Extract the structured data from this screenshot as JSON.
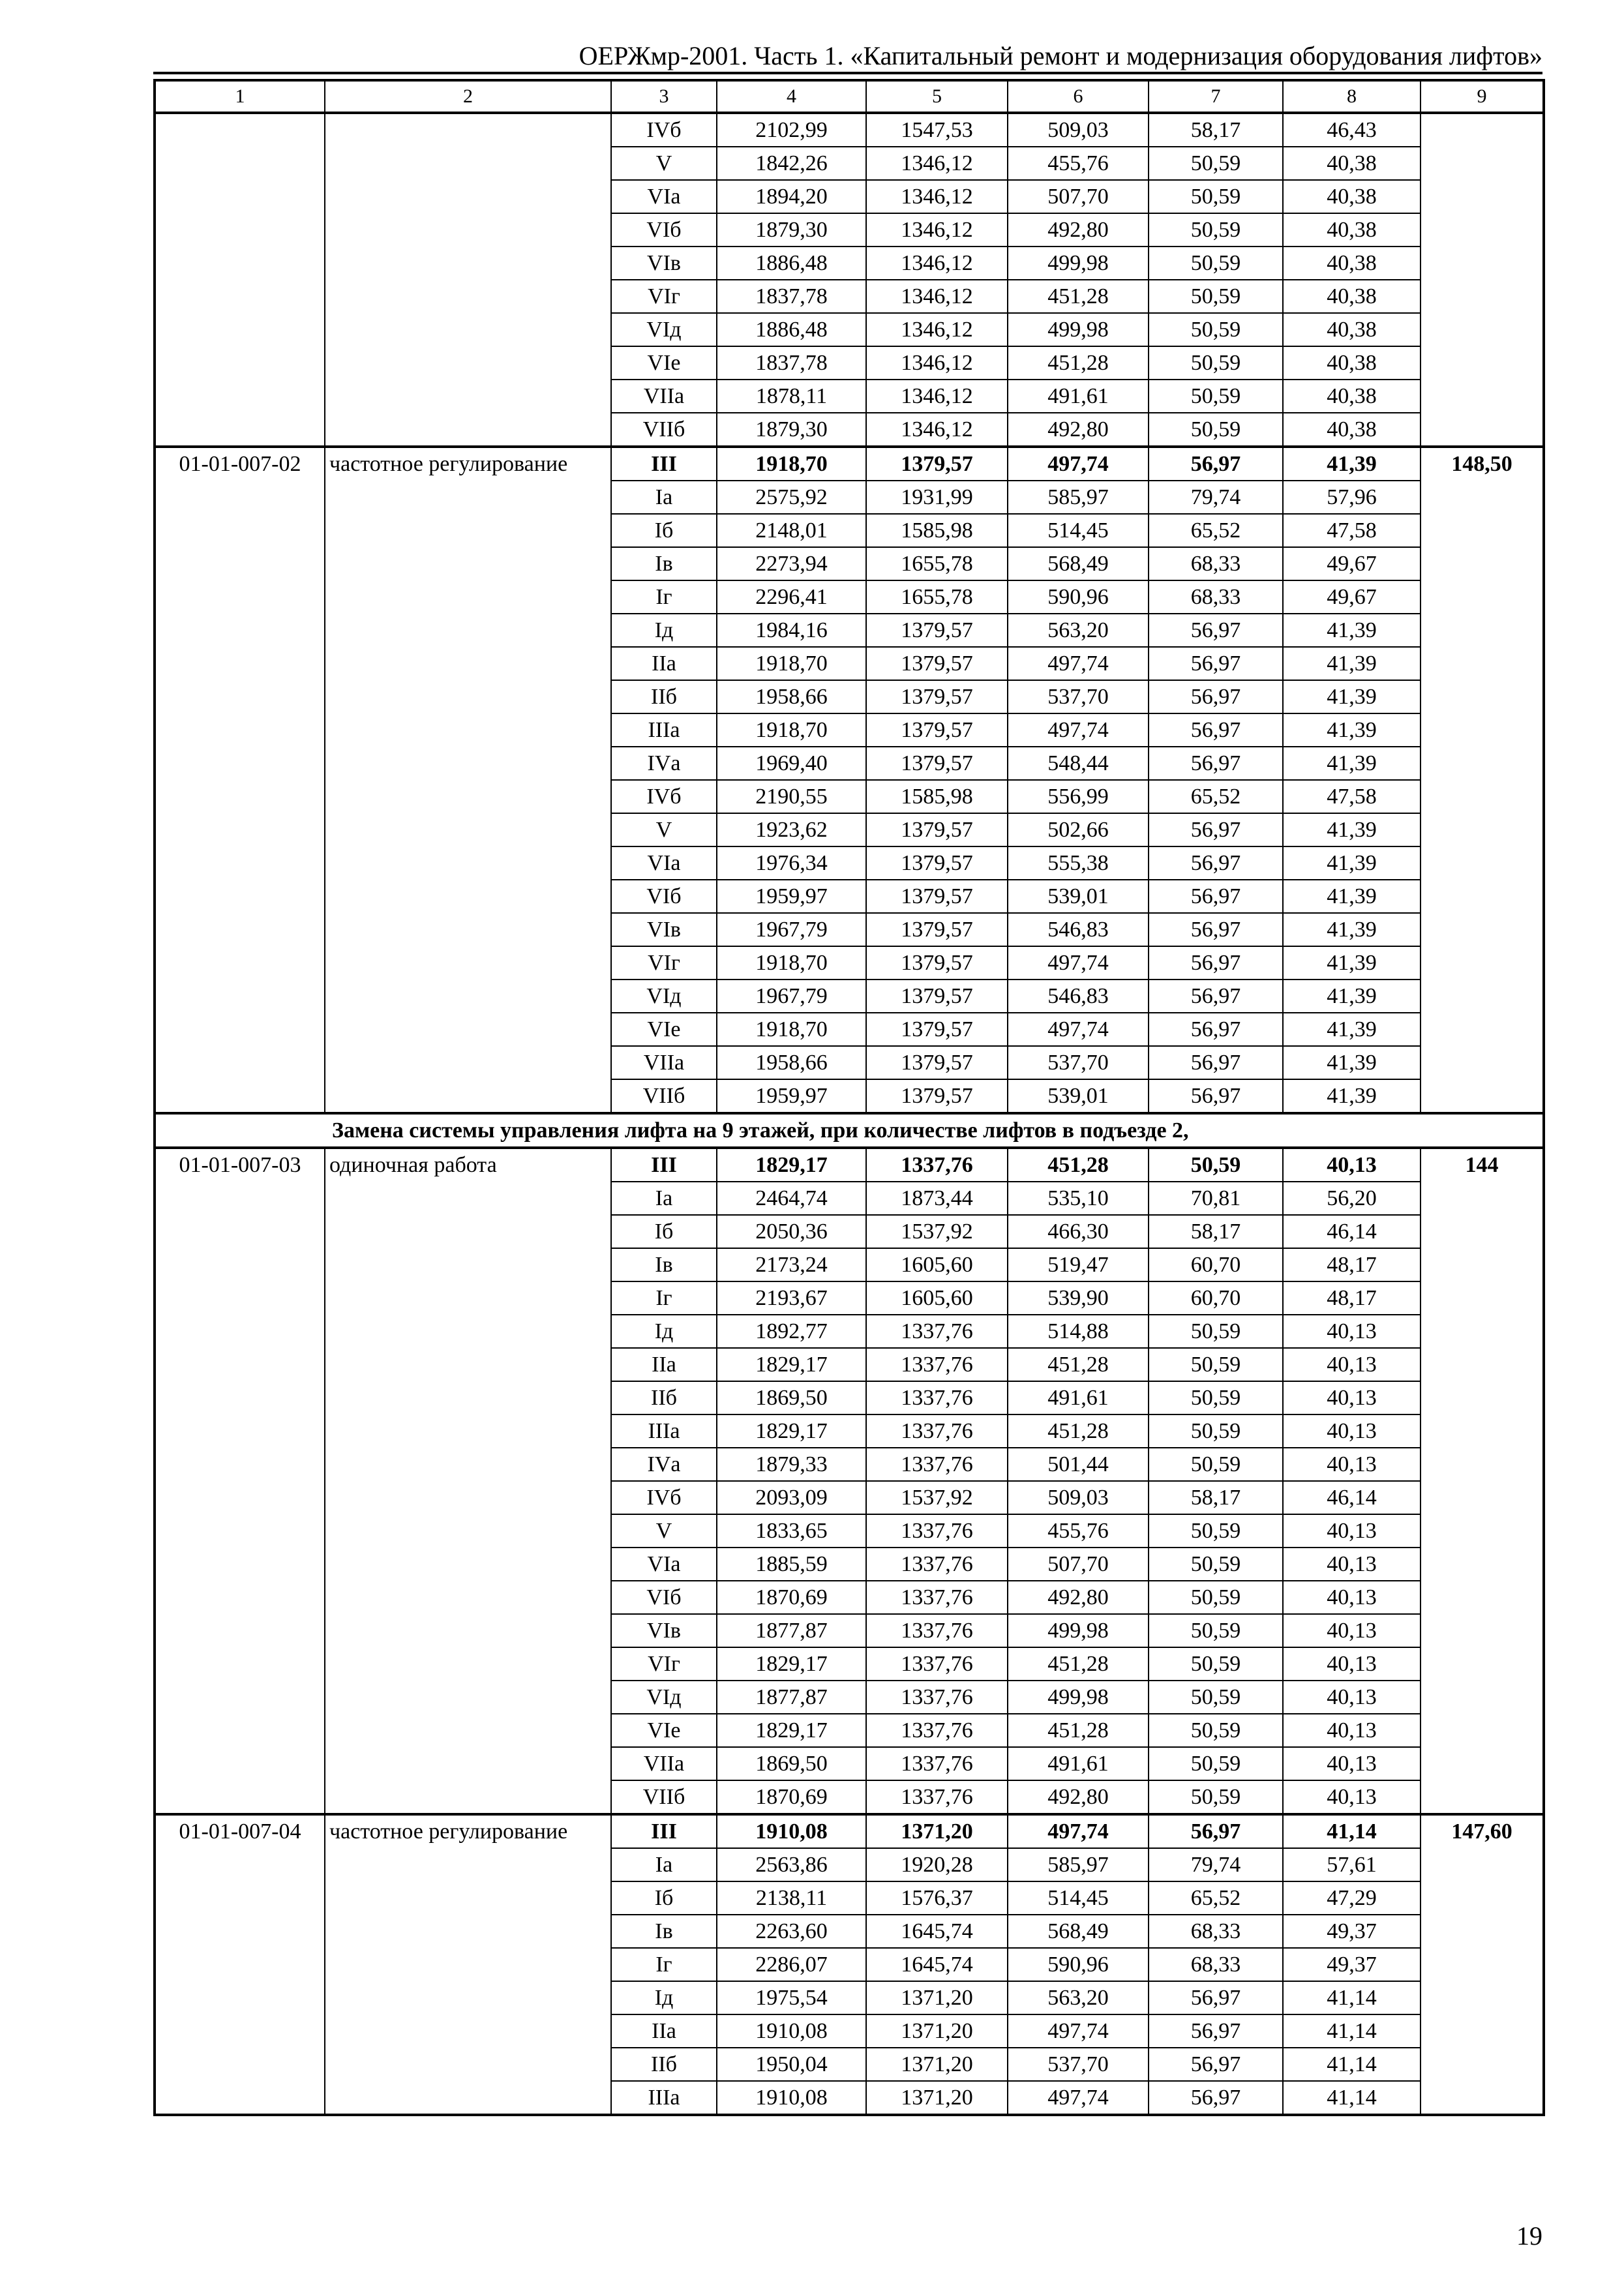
{
  "header": {
    "title": "ОЕРЖмр-2001. Часть 1. «Капитальный ремонт и модернизация оборудования лифтов»"
  },
  "column_numbers": [
    "1",
    "2",
    "3",
    "4",
    "5",
    "6",
    "7",
    "8",
    "9"
  ],
  "blocks": [
    {
      "type": "group",
      "code": "",
      "description": "",
      "total": "",
      "continuation": true,
      "rows": [
        [
          "IVб",
          "2102,99",
          "1547,53",
          "509,03",
          "58,17",
          "46,43"
        ],
        [
          "V",
          "1842,26",
          "1346,12",
          "455,76",
          "50,59",
          "40,38"
        ],
        [
          "VIа",
          "1894,20",
          "1346,12",
          "507,70",
          "50,59",
          "40,38"
        ],
        [
          "VIб",
          "1879,30",
          "1346,12",
          "492,80",
          "50,59",
          "40,38"
        ],
        [
          "VIв",
          "1886,48",
          "1346,12",
          "499,98",
          "50,59",
          "40,38"
        ],
        [
          "VIг",
          "1837,78",
          "1346,12",
          "451,28",
          "50,59",
          "40,38"
        ],
        [
          "VIд",
          "1886,48",
          "1346,12",
          "499,98",
          "50,59",
          "40,38"
        ],
        [
          "VIе",
          "1837,78",
          "1346,12",
          "451,28",
          "50,59",
          "40,38"
        ],
        [
          "VIIа",
          "1878,11",
          "1346,12",
          "491,61",
          "50,59",
          "40,38"
        ],
        [
          "VIIб",
          "1879,30",
          "1346,12",
          "492,80",
          "50,59",
          "40,38"
        ]
      ]
    },
    {
      "type": "group",
      "code": "01-01-007-02",
      "description": "частотное регулирование",
      "total": "148,50",
      "rows": [
        [
          "III",
          "1918,70",
          "1379,57",
          "497,74",
          "56,97",
          "41,39"
        ],
        [
          "Iа",
          "2575,92",
          "1931,99",
          "585,97",
          "79,74",
          "57,96"
        ],
        [
          "Iб",
          "2148,01",
          "1585,98",
          "514,45",
          "65,52",
          "47,58"
        ],
        [
          "Iв",
          "2273,94",
          "1655,78",
          "568,49",
          "68,33",
          "49,67"
        ],
        [
          "Iг",
          "2296,41",
          "1655,78",
          "590,96",
          "68,33",
          "49,67"
        ],
        [
          "Iд",
          "1984,16",
          "1379,57",
          "563,20",
          "56,97",
          "41,39"
        ],
        [
          "IIа",
          "1918,70",
          "1379,57",
          "497,74",
          "56,97",
          "41,39"
        ],
        [
          "IIб",
          "1958,66",
          "1379,57",
          "537,70",
          "56,97",
          "41,39"
        ],
        [
          "IIIа",
          "1918,70",
          "1379,57",
          "497,74",
          "56,97",
          "41,39"
        ],
        [
          "IVа",
          "1969,40",
          "1379,57",
          "548,44",
          "56,97",
          "41,39"
        ],
        [
          "IVб",
          "2190,55",
          "1585,98",
          "556,99",
          "65,52",
          "47,58"
        ],
        [
          "V",
          "1923,62",
          "1379,57",
          "502,66",
          "56,97",
          "41,39"
        ],
        [
          "VIа",
          "1976,34",
          "1379,57",
          "555,38",
          "56,97",
          "41,39"
        ],
        [
          "VIб",
          "1959,97",
          "1379,57",
          "539,01",
          "56,97",
          "41,39"
        ],
        [
          "VIв",
          "1967,79",
          "1379,57",
          "546,83",
          "56,97",
          "41,39"
        ],
        [
          "VIг",
          "1918,70",
          "1379,57",
          "497,74",
          "56,97",
          "41,39"
        ],
        [
          "VIд",
          "1967,79",
          "1379,57",
          "546,83",
          "56,97",
          "41,39"
        ],
        [
          "VIе",
          "1918,70",
          "1379,57",
          "497,74",
          "56,97",
          "41,39"
        ],
        [
          "VIIа",
          "1958,66",
          "1379,57",
          "537,70",
          "56,97",
          "41,39"
        ],
        [
          "VIIб",
          "1959,97",
          "1379,57",
          "539,01",
          "56,97",
          "41,39"
        ]
      ]
    },
    {
      "type": "section",
      "title": "Замена системы управления лифта на 9 этажей, при количестве лифтов в подъезде 2,"
    },
    {
      "type": "group",
      "code": "01-01-007-03",
      "description": "одиночная работа",
      "total": "144",
      "rows": [
        [
          "III",
          "1829,17",
          "1337,76",
          "451,28",
          "50,59",
          "40,13"
        ],
        [
          "Iа",
          "2464,74",
          "1873,44",
          "535,10",
          "70,81",
          "56,20"
        ],
        [
          "Iб",
          "2050,36",
          "1537,92",
          "466,30",
          "58,17",
          "46,14"
        ],
        [
          "Iв",
          "2173,24",
          "1605,60",
          "519,47",
          "60,70",
          "48,17"
        ],
        [
          "Iг",
          "2193,67",
          "1605,60",
          "539,90",
          "60,70",
          "48,17"
        ],
        [
          "Iд",
          "1892,77",
          "1337,76",
          "514,88",
          "50,59",
          "40,13"
        ],
        [
          "IIа",
          "1829,17",
          "1337,76",
          "451,28",
          "50,59",
          "40,13"
        ],
        [
          "IIб",
          "1869,50",
          "1337,76",
          "491,61",
          "50,59",
          "40,13"
        ],
        [
          "IIIа",
          "1829,17",
          "1337,76",
          "451,28",
          "50,59",
          "40,13"
        ],
        [
          "IVа",
          "1879,33",
          "1337,76",
          "501,44",
          "50,59",
          "40,13"
        ],
        [
          "IVб",
          "2093,09",
          "1537,92",
          "509,03",
          "58,17",
          "46,14"
        ],
        [
          "V",
          "1833,65",
          "1337,76",
          "455,76",
          "50,59",
          "40,13"
        ],
        [
          "VIа",
          "1885,59",
          "1337,76",
          "507,70",
          "50,59",
          "40,13"
        ],
        [
          "VIб",
          "1870,69",
          "1337,76",
          "492,80",
          "50,59",
          "40,13"
        ],
        [
          "VIв",
          "1877,87",
          "1337,76",
          "499,98",
          "50,59",
          "40,13"
        ],
        [
          "VIг",
          "1829,17",
          "1337,76",
          "451,28",
          "50,59",
          "40,13"
        ],
        [
          "VIд",
          "1877,87",
          "1337,76",
          "499,98",
          "50,59",
          "40,13"
        ],
        [
          "VIе",
          "1829,17",
          "1337,76",
          "451,28",
          "50,59",
          "40,13"
        ],
        [
          "VIIа",
          "1869,50",
          "1337,76",
          "491,61",
          "50,59",
          "40,13"
        ],
        [
          "VIIб",
          "1870,69",
          "1337,76",
          "492,80",
          "50,59",
          "40,13"
        ]
      ]
    },
    {
      "type": "group",
      "code": "01-01-007-04",
      "description": "частотное регулирование",
      "total": "147,60",
      "rows": [
        [
          "III",
          "1910,08",
          "1371,20",
          "497,74",
          "56,97",
          "41,14"
        ],
        [
          "Iа",
          "2563,86",
          "1920,28",
          "585,97",
          "79,74",
          "57,61"
        ],
        [
          "Iб",
          "2138,11",
          "1576,37",
          "514,45",
          "65,52",
          "47,29"
        ],
        [
          "Iв",
          "2263,60",
          "1645,74",
          "568,49",
          "68,33",
          "49,37"
        ],
        [
          "Iг",
          "2286,07",
          "1645,74",
          "590,96",
          "68,33",
          "49,37"
        ],
        [
          "Iд",
          "1975,54",
          "1371,20",
          "563,20",
          "56,97",
          "41,14"
        ],
        [
          "IIа",
          "1910,08",
          "1371,20",
          "497,74",
          "56,97",
          "41,14"
        ],
        [
          "IIб",
          "1950,04",
          "1371,20",
          "537,70",
          "56,97",
          "41,14"
        ],
        [
          "IIIа",
          "1910,08",
          "1371,20",
          "497,74",
          "56,97",
          "41,14"
        ]
      ]
    }
  ],
  "page_number": "19"
}
